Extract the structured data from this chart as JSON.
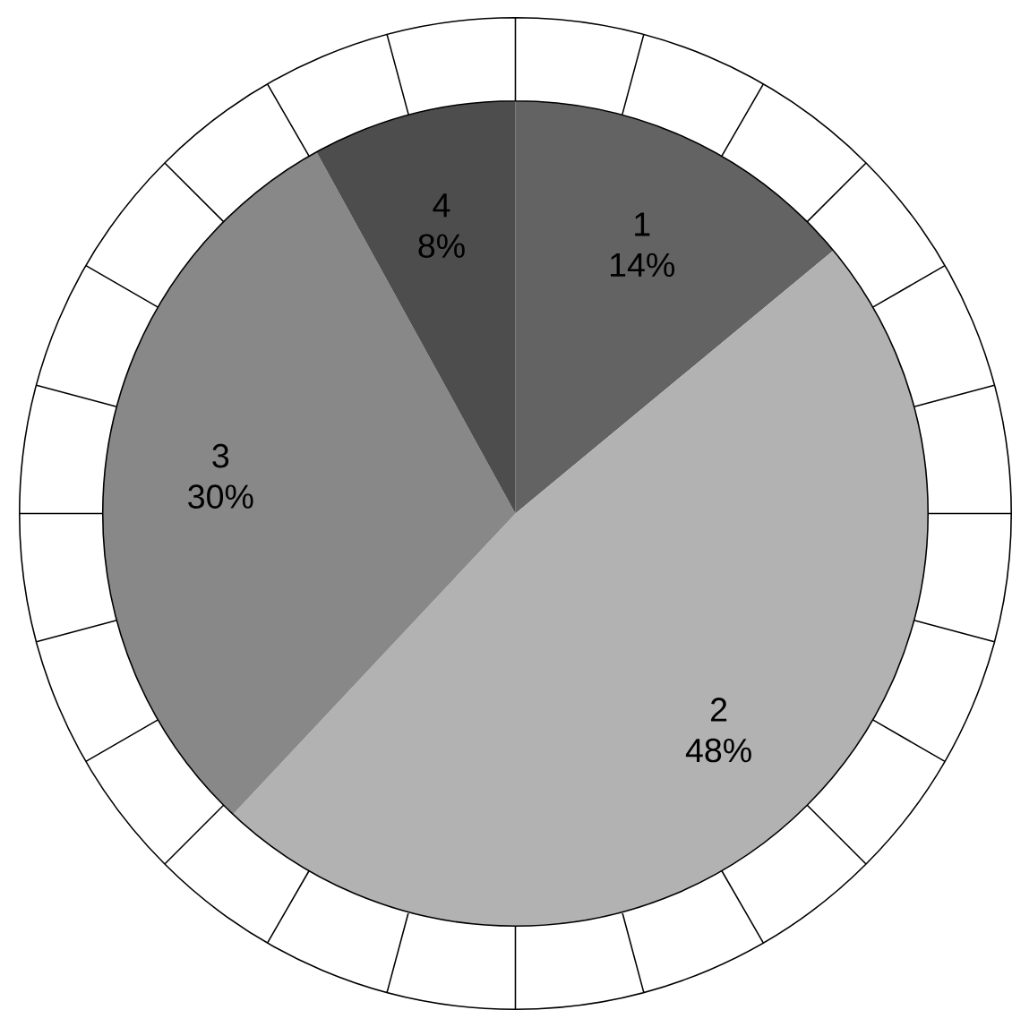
{
  "chart_data": {
    "type": "pie",
    "categories": [
      "1",
      "2",
      "3",
      "4"
    ],
    "values": [
      14,
      48,
      30,
      8
    ],
    "value_labels": [
      "14%",
      "48%",
      "30%",
      "8%"
    ],
    "colors": [
      "#636363",
      "#b2b2b2",
      "#888888",
      "#4d4d4d"
    ]
  }
}
